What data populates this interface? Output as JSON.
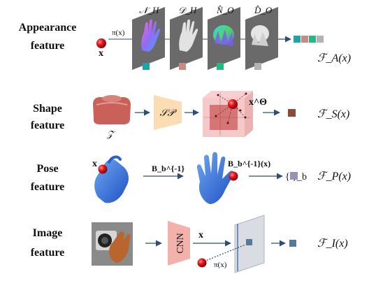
{
  "rows": {
    "appearance": {
      "label_line1": "Appearance",
      "label_line2": "feature",
      "input": "x",
      "projection": "π(x)",
      "planes": [
        "𝒩_H",
        "𝒟_H",
        "N̂_O",
        "D̂_O"
      ],
      "output": "ℱ_A(x)"
    },
    "shape": {
      "label_line1": "Shape",
      "label_line2": "feature",
      "latent": "𝒵",
      "module": "𝒮𝒫",
      "point": "x^Θ",
      "output": "ℱ_S(x)"
    },
    "pose": {
      "label_line1": "Pose",
      "label_line2": "feature",
      "input": "x",
      "transform": "B_b^{-1}",
      "transformed_point": "B_b^{-1}(x)",
      "set": "{  }_b",
      "output": "ℱ_P(x)"
    },
    "image": {
      "label_line1": "Image",
      "label_line2": "feature",
      "network": "CNN",
      "input": "x",
      "projection": "π(x)",
      "output": "ℱ_I(x)"
    }
  },
  "colors": {
    "point_red": "#e0141b",
    "arrow": "#2e4f74",
    "teal": "#1fa3a8",
    "rose": "#c98a86",
    "green": "#25b882",
    "gray": "#b3b3b3",
    "brown": "#8c4a3a",
    "lavender": "#9b91b8",
    "slate": "#577a9c",
    "shape_body": "#c9615a",
    "sp_box": "#fcdcb2",
    "cnn_box": "#f2b2ab"
  }
}
